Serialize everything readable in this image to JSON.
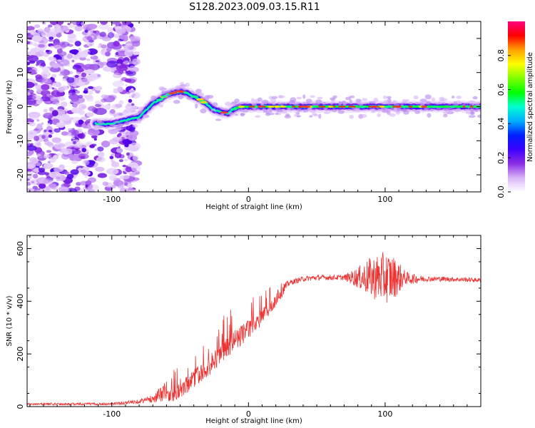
{
  "title": "S128.2023.009.03.15.R11",
  "chart_data": [
    {
      "type": "heatmap",
      "xlabel": "Height of straight line (km)",
      "ylabel": "Frequency (Hz)",
      "xlim": [
        -162,
        170
      ],
      "ylim": [
        -25,
        25
      ],
      "x_ticks": [
        -100,
        0,
        100
      ],
      "x_tick_labels": [
        "-100",
        "0",
        "100"
      ],
      "y_ticks": [
        -20,
        -10,
        0,
        10,
        20
      ],
      "y_tick_labels": [
        "-20",
        "-10",
        "0",
        "10",
        "20"
      ],
      "colorbar": {
        "label": "Normalized spectral amplitude",
        "range": [
          0,
          1
        ],
        "ticks": [
          0.0,
          0.2,
          0.4,
          0.6,
          0.8
        ],
        "tick_labels": [
          "0.0",
          "0.2",
          "0.4",
          "0.6",
          "0.8"
        ],
        "colormap": "rainbow",
        "colors": [
          "#ffffff",
          "#d8b4f8",
          "#8a2be2",
          "#3b00ff",
          "#0020ff",
          "#00b0ff",
          "#00ffd0",
          "#00ff00",
          "#80ff00",
          "#ffff00",
          "#ffa000",
          "#ff0000",
          "#ff0080"
        ]
      },
      "ridge": {
        "description": "frequency of spectral maximum vs height",
        "x": [
          -110,
          -100,
          -90,
          -80,
          -75,
          -70,
          -65,
          -60,
          -55,
          -50,
          -45,
          -40,
          -35,
          -30,
          -25,
          -20,
          -15,
          -10,
          -5,
          0,
          10,
          20,
          40,
          60,
          80,
          100,
          120,
          140,
          170
        ],
        "y": [
          -5,
          -5,
          -4,
          -3,
          -1,
          1,
          2,
          3.5,
          4,
          4.5,
          4,
          3,
          2,
          0.5,
          -1,
          -1.5,
          -2,
          -0.5,
          0,
          0,
          0,
          0,
          0,
          0,
          0,
          0,
          0,
          0,
          0
        ]
      },
      "noise_region_x": [
        -162,
        -82
      ]
    },
    {
      "type": "line",
      "xlabel": "Height of straight line (km)",
      "ylabel": "SNR (10 * v/v)",
      "xlim": [
        -162,
        170
      ],
      "ylim": [
        0,
        650
      ],
      "x_ticks": [
        -100,
        0,
        100
      ],
      "x_tick_labels": [
        "-100",
        "0",
        "100"
      ],
      "y_ticks": [
        0,
        200,
        400,
        600
      ],
      "y_tick_labels": [
        "0",
        "200",
        "400",
        "600"
      ],
      "series": [
        {
          "color": "#ee3333",
          "envelope": {
            "x": [
              -162,
              -100,
              -90,
              -80,
              -70,
              -60,
              -50,
              -40,
              -30,
              -20,
              -10,
              0,
              10,
              20,
              30,
              40,
              50,
              60,
              70,
              80,
              90,
              100,
              110,
              120,
              140,
              170
            ],
            "y": [
              10,
              10,
              15,
              20,
              30,
              60,
              90,
              140,
              190,
              240,
              290,
              330,
              370,
              420,
              470,
              485,
              490,
              490,
              490,
              490,
              490,
              490,
              490,
              485,
              485,
              480
            ]
          },
          "noise_amplitude": {
            "x": [
              -162,
              -100,
              -80,
              -70,
              -60,
              -40,
              -20,
              0,
              20,
              30,
              70,
              80,
              90,
              100,
              105,
              110,
              115,
              130,
              170
            ],
            "y": [
              4,
              5,
              8,
              15,
              40,
              60,
              70,
              60,
              40,
              10,
              10,
              40,
              80,
              100,
              90,
              60,
              25,
              10,
              8
            ]
          }
        }
      ]
    }
  ]
}
